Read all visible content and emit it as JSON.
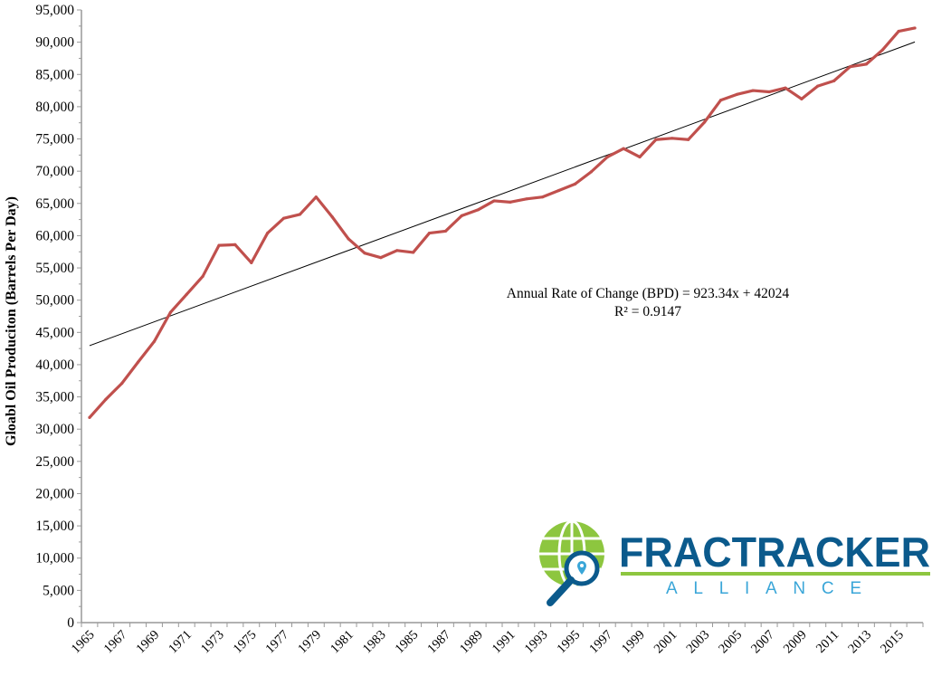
{
  "chart_data": {
    "type": "line",
    "title": "",
    "xlabel": "",
    "ylabel": "Gloabl Oil Produciton (Barrels Per Day)",
    "ylim": [
      0,
      95000
    ],
    "ytick_step": 5000,
    "ytick_labels": [
      "0",
      "5,000",
      "10,000",
      "15,000",
      "20,000",
      "25,000",
      "30,000",
      "35,000",
      "40,000",
      "45,000",
      "50,000",
      "55,000",
      "60,000",
      "65,000",
      "70,000",
      "75,000",
      "80,000",
      "85,000",
      "90,000",
      "95,000"
    ],
    "xtick_labels": [
      "1965",
      "1967",
      "1969",
      "1971",
      "1973",
      "1975",
      "1977",
      "1979",
      "1981",
      "1983",
      "1985",
      "1987",
      "1989",
      "1991",
      "1993",
      "1995",
      "1997",
      "1999",
      "2001",
      "2003",
      "2005",
      "2007",
      "2009",
      "2011",
      "2013",
      "2015"
    ],
    "x": [
      1965,
      1966,
      1967,
      1968,
      1969,
      1970,
      1971,
      1972,
      1973,
      1974,
      1975,
      1976,
      1977,
      1978,
      1979,
      1980,
      1981,
      1982,
      1983,
      1984,
      1985,
      1986,
      1987,
      1988,
      1989,
      1990,
      1991,
      1992,
      1993,
      1994,
      1995,
      1996,
      1997,
      1998,
      1999,
      2000,
      2001,
      2002,
      2003,
      2004,
      2005,
      2006,
      2007,
      2008,
      2009,
      2010,
      2011,
      2012,
      2013,
      2014,
      2015,
      2016
    ],
    "series": [
      {
        "name": "Global Oil Production",
        "color": "#c0504d",
        "values": [
          31800,
          34600,
          37100,
          40400,
          43600,
          48100,
          50900,
          53700,
          58500,
          58600,
          55800,
          60400,
          62700,
          63300,
          66000,
          62900,
          59500,
          57300,
          56600,
          57700,
          57400,
          60400,
          60700,
          63100,
          64000,
          65400,
          65200,
          65700,
          66000,
          67000,
          68000,
          69900,
          72200,
          73500,
          72200,
          74900,
          75100,
          74900,
          77600,
          81000,
          81900,
          82500,
          82300,
          82900,
          81200,
          83200,
          84000,
          86200,
          86600,
          88800,
          91700,
          92200
        ]
      }
    ],
    "trendline": {
      "type": "linear",
      "slope": 923.34,
      "intercept": 42024,
      "color": "#000000",
      "equation_label": "Annual Rate of Change (BPD) = 923.34x + 42024",
      "r2_label": "R² = 0.9147"
    },
    "grid": false,
    "legend": "none"
  },
  "logo": {
    "name": "FRACTRACKER",
    "subtitle": "ALLIANCE",
    "colors": {
      "blue": "#0b5a8c",
      "green": "#8dc63f",
      "light_blue": "#3aa6d8"
    }
  }
}
